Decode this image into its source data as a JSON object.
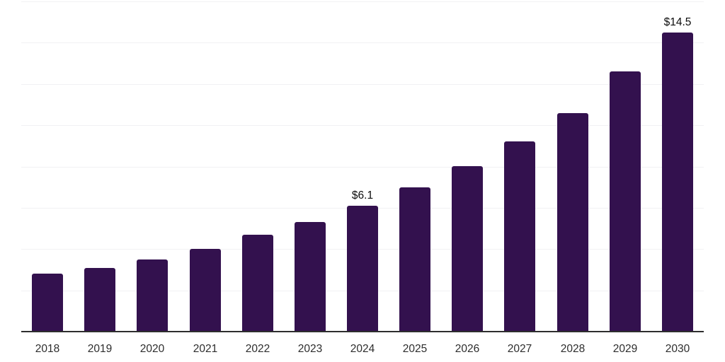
{
  "chart_data": {
    "type": "bar",
    "categories": [
      "2018",
      "2019",
      "2020",
      "2021",
      "2022",
      "2023",
      "2024",
      "2025",
      "2026",
      "2027",
      "2028",
      "2029",
      "2030"
    ],
    "values": [
      2.8,
      3.1,
      3.5,
      4.0,
      4.7,
      5.3,
      6.1,
      7.0,
      8.0,
      9.2,
      10.6,
      12.6,
      14.5
    ],
    "annotations": [
      {
        "category": "2024",
        "label": "$6.1"
      },
      {
        "category": "2030",
        "label": "$14.5"
      }
    ],
    "title": "",
    "xlabel": "",
    "ylabel": "",
    "ylim": [
      0,
      16
    ],
    "gridline_step": 2,
    "grid": true,
    "legend": false,
    "y_tick_labels_visible": false,
    "colors": {
      "bar": "#33114E",
      "gridline": "#F1F1F3",
      "axis": "#2E2E2E",
      "tick_label": "#2D2D2D",
      "annotation": "#0D0D0D",
      "background": "#FFFFFF"
    }
  }
}
